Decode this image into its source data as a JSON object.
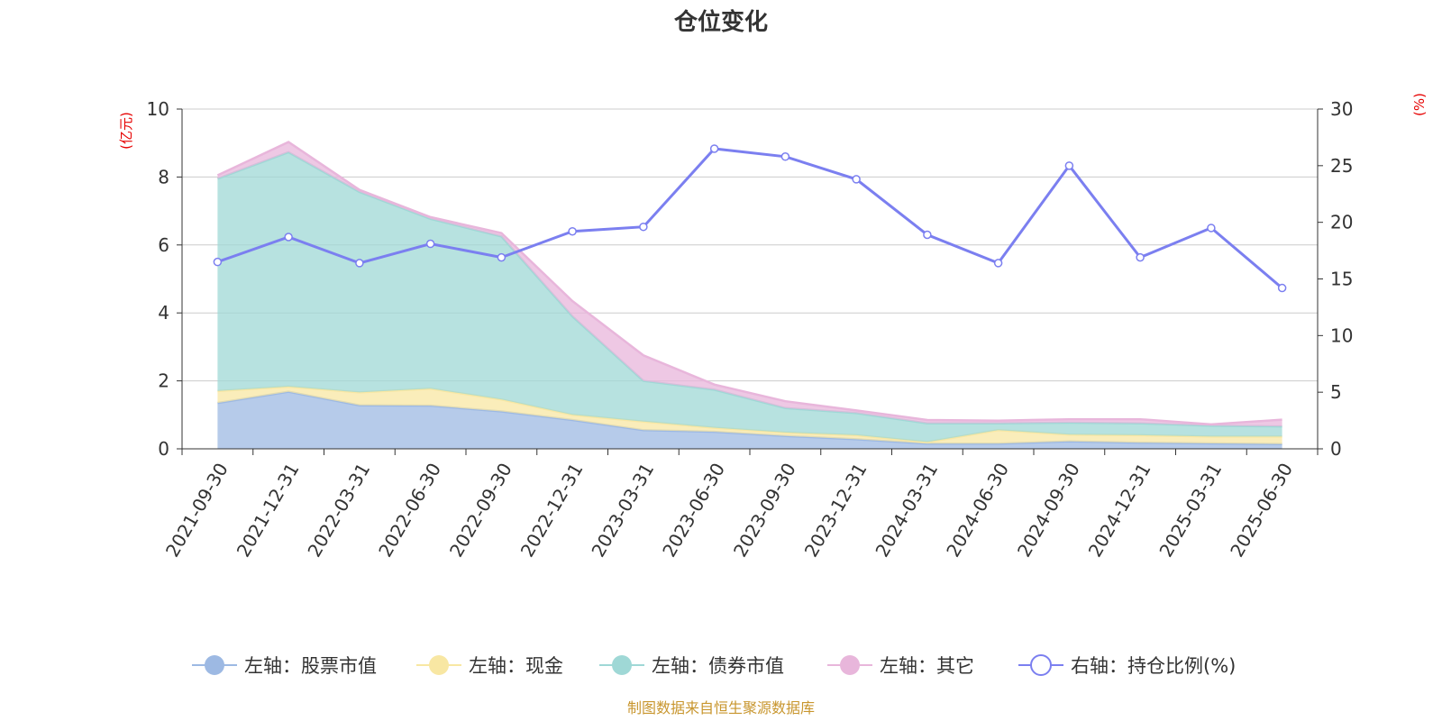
{
  "chart_data": {
    "type": "area",
    "title": "仓位变化",
    "x": [
      "2021-09-30",
      "2021-12-31",
      "2022-03-31",
      "2022-06-30",
      "2022-09-30",
      "2022-12-31",
      "2023-03-31",
      "2023-06-30",
      "2023-09-30",
      "2023-12-31",
      "2024-03-31",
      "2024-06-30",
      "2024-09-30",
      "2024-12-31",
      "2025-03-31",
      "2025-06-30"
    ],
    "left_axis": {
      "unit": "(亿元)",
      "ylim": [
        0,
        10
      ],
      "ticks": [
        "0",
        "2",
        "4",
        "6",
        "8",
        "10"
      ]
    },
    "right_axis": {
      "unit": "(%)",
      "ylim": [
        0,
        30
      ],
      "ticks": [
        "0",
        "5",
        "10",
        "15",
        "20",
        "25",
        "30"
      ]
    },
    "stacked_series": [
      {
        "name": "左轴：股票市值",
        "color": "#9db9e3",
        "values": [
          1.35,
          1.68,
          1.28,
          1.27,
          1.1,
          0.85,
          0.55,
          0.5,
          0.38,
          0.28,
          0.15,
          0.15,
          0.22,
          0.18,
          0.16,
          0.14
        ]
      },
      {
        "name": "左轴：现金",
        "color": "#f8e7a3",
        "values": [
          0.35,
          0.15,
          0.38,
          0.5,
          0.35,
          0.15,
          0.25,
          0.12,
          0.1,
          0.12,
          0.05,
          0.4,
          0.2,
          0.22,
          0.2,
          0.22
        ]
      },
      {
        "name": "左轴：债券市值",
        "color": "#9fd8d6",
        "values": [
          6.25,
          6.9,
          5.9,
          5.0,
          4.8,
          2.9,
          1.2,
          1.12,
          0.72,
          0.65,
          0.55,
          0.2,
          0.35,
          0.35,
          0.32,
          0.3
        ]
      },
      {
        "name": "左轴：其它",
        "color": "#e8b6db",
        "values": [
          0.1,
          0.3,
          0.06,
          0.05,
          0.1,
          0.45,
          0.75,
          0.15,
          0.2,
          0.08,
          0.1,
          0.08,
          0.1,
          0.12,
          0.04,
          0.2
        ]
      }
    ],
    "line_series": {
      "name": "右轴：持仓比例(%)",
      "color": "#7b7ff0",
      "values": [
        16.5,
        18.7,
        16.4,
        18.1,
        16.9,
        19.2,
        19.6,
        26.5,
        25.8,
        23.8,
        18.9,
        16.4,
        25.0,
        16.9,
        19.5,
        14.2
      ]
    },
    "grid": true,
    "legend_position": "bottom"
  },
  "footer": {
    "source": "制图数据来自恒生聚源数据库"
  },
  "colors": {
    "unit_red": "#e60000",
    "footer_gold": "#c8962e",
    "grid": "#cccccc",
    "axis": "#333333"
  }
}
